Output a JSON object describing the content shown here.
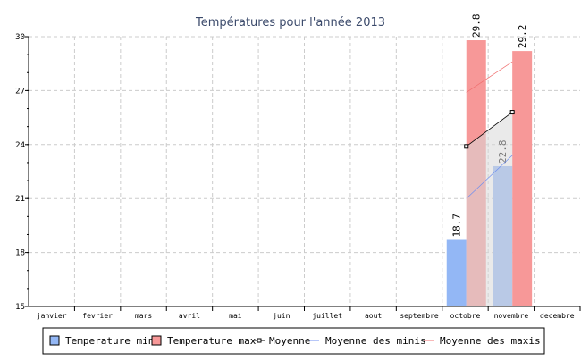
{
  "chart_data": {
    "type": "bar",
    "title": "Températures pour l'année 2013",
    "categories": [
      "janvier",
      "fevrier",
      "mars",
      "avril",
      "mai",
      "juin",
      "juillet",
      "aout",
      "septembre",
      "octobre",
      "novembre",
      "decembre"
    ],
    "ylim": [
      15,
      30
    ],
    "yticks": [
      "15",
      "18",
      "21",
      "24",
      "27",
      "30"
    ],
    "grid": true,
    "legend_position": "bottom",
    "series": [
      {
        "name": "Temperature min",
        "type": "bar",
        "color": "#93b7f5",
        "values": [
          null,
          null,
          null,
          null,
          null,
          null,
          null,
          null,
          null,
          18.7,
          22.8,
          null
        ],
        "labels": [
          "",
          "",
          "",
          "",
          "",
          "",
          "",
          "",
          "",
          "18.7",
          "22.8",
          ""
        ]
      },
      {
        "name": "Temperature max",
        "type": "bar",
        "color": "#f79898",
        "values": [
          null,
          null,
          null,
          null,
          null,
          null,
          null,
          null,
          null,
          29.8,
          29.2,
          null
        ],
        "labels": [
          "",
          "",
          "",
          "",
          "",
          "",
          "",
          "",
          "",
          "29.8",
          "29.2",
          ""
        ]
      },
      {
        "name": "Moyenne",
        "type": "line",
        "color": "#000000",
        "values": [
          null,
          null,
          null,
          null,
          null,
          null,
          null,
          null,
          null,
          23.9,
          25.8,
          null
        ]
      },
      {
        "name": "Moyenne des minis",
        "type": "line",
        "color": "#6f8ff0",
        "values": [
          null,
          null,
          null,
          null,
          null,
          null,
          null,
          null,
          null,
          21.0,
          23.4,
          null
        ]
      },
      {
        "name": "Moyenne des maxis",
        "type": "line",
        "color": "#f07070",
        "values": [
          null,
          null,
          null,
          null,
          null,
          null,
          null,
          null,
          null,
          26.9,
          28.6,
          null
        ]
      }
    ]
  }
}
